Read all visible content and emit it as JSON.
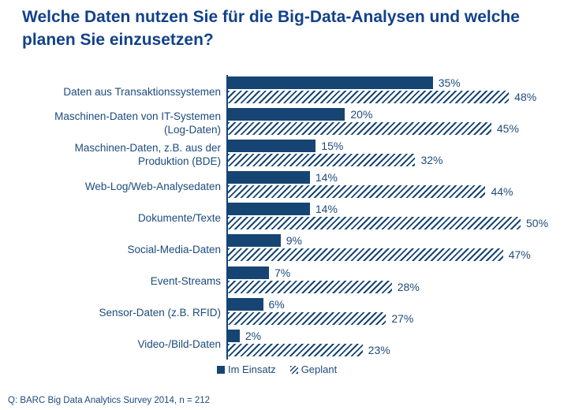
{
  "header": {
    "title": "Welche Daten nutzen Sie für die Big-Data-Analysen und welche planen Sie einzusetzen?"
  },
  "chart_data": {
    "type": "bar",
    "orientation": "horizontal",
    "title": "Welche Daten nutzen Sie für die Big-Data-Analysen und welche planen Sie einzusetzen?",
    "categories": [
      "Daten aus Transaktionssystemen",
      "Maschinen-Daten von IT-Systemen\n(Log-Daten)",
      "Maschinen-Daten, z.B. aus der\nProduktion (BDE)",
      "Web-Log/Web-Analysedaten",
      "Dokumente/Texte",
      "Social-Media-Daten",
      "Event-Streams",
      "Sensor-Daten (z.B. RFID)",
      "Video-/Bild-Daten"
    ],
    "series": [
      {
        "name": "Im Einsatz",
        "style": "solid",
        "values": [
          35,
          20,
          15,
          14,
          14,
          9,
          7,
          6,
          2
        ]
      },
      {
        "name": "Geplant",
        "style": "hatched",
        "values": [
          48,
          45,
          32,
          44,
          50,
          47,
          28,
          27,
          23
        ]
      }
    ],
    "value_suffix": "%",
    "xlim": [
      0,
      55
    ],
    "grid": false,
    "legend_position": "bottom",
    "colors": {
      "bar_navy": "#164573",
      "title_blue": "#12418A",
      "text_navy": "#1C4B7D",
      "hatch_background": "#ffffff"
    }
  },
  "footer": {
    "source": "Q: BARC Big Data Analytics Survey 2014, n = 212"
  }
}
